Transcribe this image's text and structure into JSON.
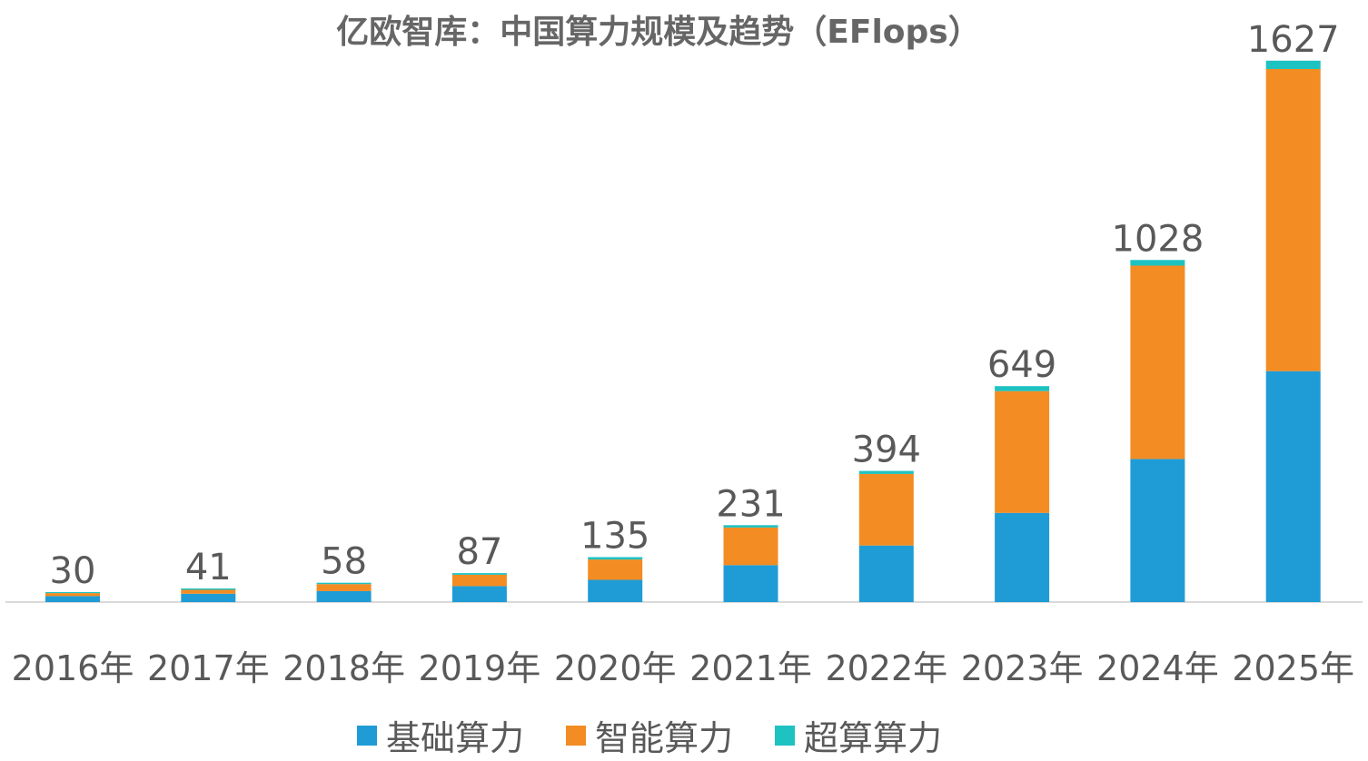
{
  "chart_data": {
    "type": "bar",
    "stacked": true,
    "title": "亿欧智库：中国算力规模及趋势（EFlops）",
    "xlabel": "",
    "ylabel": "",
    "categories": [
      "2016年",
      "2017年",
      "2018年",
      "2019年",
      "2020年",
      "2021年",
      "2022年",
      "2023年",
      "2024年",
      "2025年"
    ],
    "series": [
      {
        "name": "基础算力",
        "color": "#1F9CD5",
        "values": [
          18,
          25,
          33,
          48,
          67,
          111,
          170,
          268,
          430,
          694
        ]
      },
      {
        "name": "智能算力",
        "color": "#F38C22",
        "values": [
          9,
          12,
          21,
          34,
          61,
          113,
          215,
          366,
          581,
          908
        ]
      },
      {
        "name": "超算算力",
        "color": "#1EC2C1",
        "values": [
          3,
          4,
          4,
          5,
          7,
          7,
          9,
          15,
          17,
          25
        ]
      }
    ],
    "totals": [
      30,
      41,
      58,
      87,
      135,
      231,
      394,
      649,
      1028,
      1627
    ],
    "ylim": [
      0,
      1700
    ],
    "grid": false,
    "legend": "bottom"
  }
}
